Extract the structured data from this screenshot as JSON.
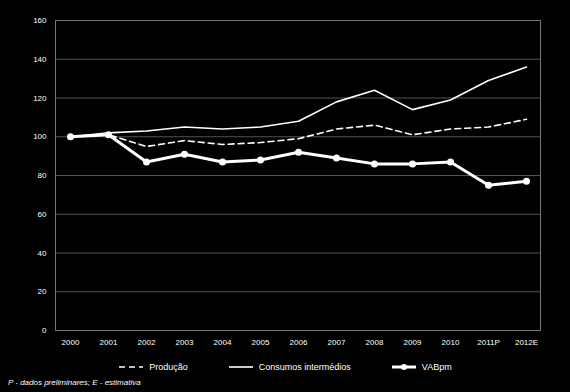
{
  "chart_data": {
    "type": "line",
    "categories": [
      "2000",
      "2001",
      "2002",
      "2003",
      "2004",
      "2005",
      "2006",
      "2007",
      "2008",
      "2009",
      "2010",
      "2011P",
      "2012E"
    ],
    "series": [
      {
        "name": "Produção",
        "color": "#ffffff",
        "line_style": "dashed",
        "values": [
          100,
          101,
          95,
          98,
          96,
          97,
          99,
          104,
          106,
          101,
          104,
          105,
          109
        ]
      },
      {
        "name": "Consumos intermédios",
        "color": "#ffffff",
        "line_style": "solid",
        "values": [
          100,
          102,
          103,
          105,
          104,
          105,
          108,
          118,
          124,
          114,
          119,
          129,
          136
        ]
      },
      {
        "name": "VABpm",
        "color": "#ffffff",
        "line_style": "solid",
        "marker": "circle",
        "values": [
          100,
          101,
          87,
          91,
          87,
          88,
          92,
          89,
          86,
          86,
          87,
          75,
          77
        ]
      }
    ],
    "ylim": [
      0,
      160
    ],
    "yticks": [
      0,
      20,
      40,
      60,
      80,
      100,
      120,
      140,
      160
    ],
    "grid": true,
    "legend": "bottom",
    "annotations": [
      "P - dados preliminares; E - estimativa"
    ]
  }
}
